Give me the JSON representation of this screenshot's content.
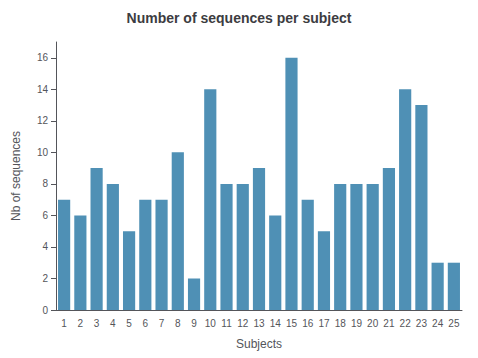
{
  "chart_data": {
    "type": "bar",
    "title": "Number of sequences per subject",
    "xlabel": "Subjects",
    "ylabel": "Nb of sequences",
    "categories": [
      1,
      2,
      3,
      4,
      5,
      6,
      7,
      8,
      9,
      10,
      11,
      12,
      13,
      14,
      15,
      16,
      17,
      18,
      19,
      20,
      21,
      22,
      23,
      24,
      25
    ],
    "values": [
      7,
      6,
      9,
      8,
      5,
      7,
      7,
      10,
      2,
      14,
      8,
      8,
      9,
      6,
      16,
      7,
      5,
      8,
      8,
      8,
      9,
      14,
      13,
      3,
      3
    ],
    "color": "#4f90b5",
    "ylim": [
      0,
      17
    ],
    "yticks": [
      0,
      2,
      4,
      6,
      8,
      10,
      12,
      14,
      16
    ],
    "grid": false
  }
}
